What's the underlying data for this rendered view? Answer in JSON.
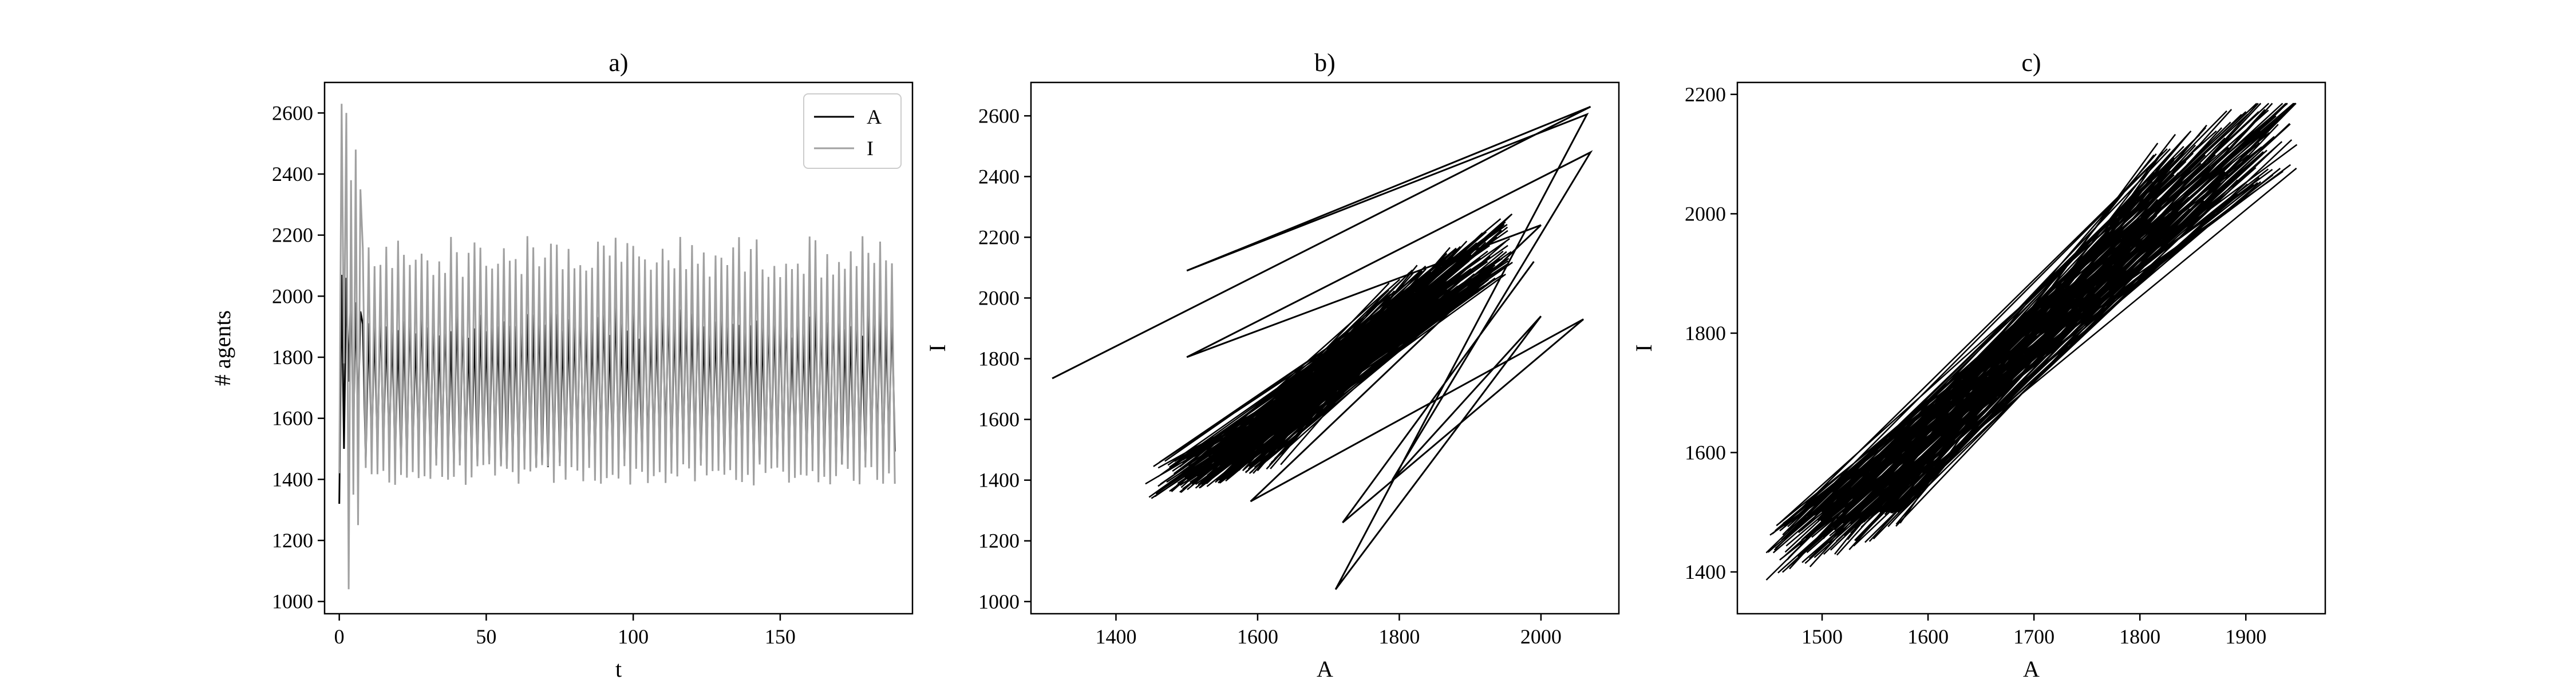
{
  "chart_data": [
    {
      "panel": "a",
      "type": "line",
      "title": "a)",
      "xlabel": "t",
      "ylabel": "# agents",
      "xlim": [
        -5,
        195
      ],
      "ylim": [
        960,
        2700
      ],
      "xticks": [
        0,
        50,
        100,
        150
      ],
      "yticks": [
        1000,
        1200,
        1400,
        1600,
        1800,
        2000,
        2200,
        2400,
        2600
      ],
      "legend": {
        "position": "top-right"
      },
      "series": [
        {
          "name": "A",
          "color": "#000000",
          "t_range": [
            0,
            189
          ],
          "initial_values": [
            1320,
            2070,
            1500,
            2060,
            1720,
            2040,
            1550,
            1980,
            1600,
            1950
          ],
          "oscillation_range": [
            1440,
            2000
          ]
        },
        {
          "name": "I",
          "color": "#a0a0a0",
          "t_range": [
            0,
            189
          ],
          "initial_values": [
            1420,
            2630,
            1780,
            2600,
            1040,
            2380,
            1350,
            2480,
            1250,
            2350
          ],
          "oscillation_range": [
            1380,
            2200
          ]
        }
      ]
    },
    {
      "panel": "b",
      "type": "line",
      "title": "b)",
      "xlabel": "A",
      "ylabel": "I",
      "xlim": [
        1280,
        2110
      ],
      "ylim": [
        960,
        2710
      ],
      "xticks": [
        1400,
        1600,
        1800,
        2000
      ],
      "yticks": [
        1000,
        1200,
        1400,
        1600,
        1800,
        2000,
        2200,
        2400,
        2600
      ],
      "series": [
        {
          "name": "",
          "color": "#000000",
          "transient_path": [
            [
              1310,
              1735
            ],
            [
              2070,
              2630
            ],
            [
              1500,
              2090
            ],
            [
              2065,
              2605
            ],
            [
              1710,
              1040
            ],
            [
              2000,
              1940
            ],
            [
              1790,
              1400
            ],
            [
              2070,
              2480
            ],
            [
              1500,
              1805
            ],
            [
              2000,
              2240
            ],
            [
              1590,
              1330
            ],
            [
              2060,
              1930
            ],
            [
              1720,
              1260
            ],
            [
              1990,
              2120
            ]
          ],
          "attractor": {
            "A_range": [
              1430,
              1960
            ],
            "I_range": [
              1360,
              2230
            ]
          }
        }
      ]
    },
    {
      "panel": "c",
      "type": "line",
      "title": "c)",
      "xlabel": "A",
      "ylabel": "I",
      "xlim": [
        1420,
        1975
      ],
      "ylim": [
        1330,
        2220
      ],
      "xticks": [
        1500,
        1600,
        1700,
        1800,
        1900
      ],
      "yticks": [
        1400,
        1600,
        1800,
        2000,
        2200
      ],
      "series": [
        {
          "name": "",
          "color": "#000000",
          "attractor": {
            "A_range": [
              1440,
              1950
            ],
            "I_range": [
              1370,
              2185
            ]
          }
        }
      ]
    }
  ]
}
